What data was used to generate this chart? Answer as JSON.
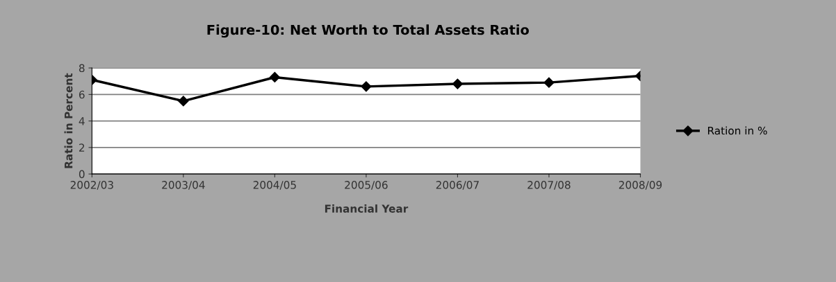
{
  "chart_data": {
    "type": "line",
    "title": "Figure-10: Net Worth to Total Assets Ratio",
    "xlabel": "Financial Year",
    "ylabel": "Ratio in Percent",
    "categories": [
      "2002/03",
      "2003/04",
      "2004/05",
      "2005/06",
      "2006/07",
      "2007/08",
      "2008/09"
    ],
    "series": [
      {
        "name": "Ration in %",
        "color": "#000000",
        "values": [
          7.1,
          5.5,
          7.3,
          6.6,
          6.8,
          6.9,
          7.4
        ]
      }
    ],
    "ylim": [
      0,
      8
    ],
    "yticks": [
      0,
      2,
      4,
      6,
      8
    ],
    "grid": "y",
    "legend": "right",
    "marker": "diamond",
    "line_style": "solid"
  }
}
